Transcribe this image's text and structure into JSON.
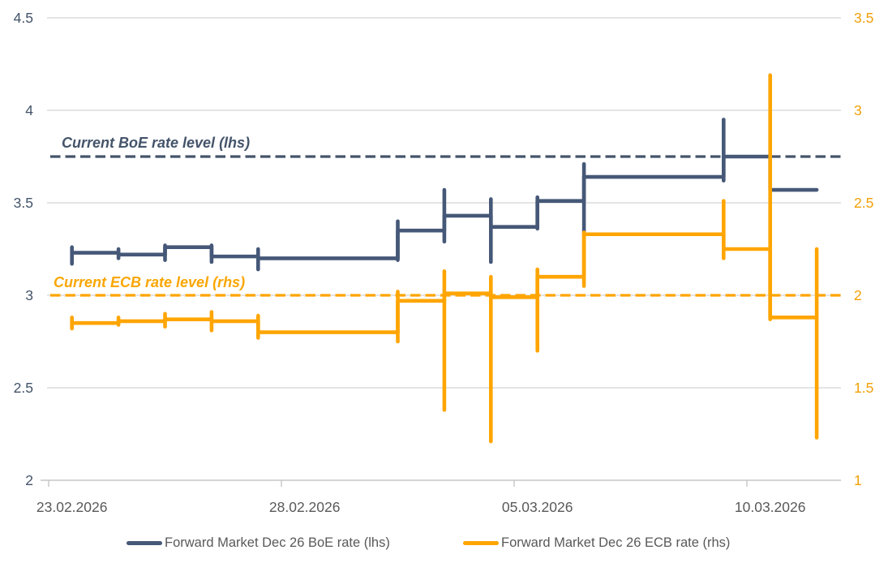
{
  "chart_data": {
    "type": "line",
    "title": "",
    "description": "Step line chart with daily high-low whiskers comparing forward market Dec 26 BoE and ECB rates on two axes",
    "background": "#FFFFFF",
    "grid": true,
    "gridline_color": "#DCDCDC",
    "axis_line_color": "#C6C6C6",
    "x_axis": {
      "tick_labels": [
        "23.02.2026",
        "28.02.2026",
        "05.03.2026",
        "10.03.2026"
      ],
      "tick_day_index": [
        0,
        5,
        10,
        15
      ],
      "total_days": 17,
      "label_color": "#595959"
    },
    "left_axis": {
      "title": "BoE rate (lhs)",
      "ticks": [
        "4.5",
        "4",
        "3.5",
        "3",
        "2.5",
        "2"
      ],
      "min": 2,
      "max": 4.5,
      "color": "#44546A"
    },
    "right_axis": {
      "title": "ECB rate (rhs)",
      "ticks": [
        "3.5",
        "3",
        "2.5",
        "2",
        "1.5",
        "1"
      ],
      "min": 1,
      "max": 3.5,
      "color": "#F2A007"
    },
    "reference_lines": [
      {
        "label": "Current BoE rate level (lhs)",
        "value": 3.75,
        "axis": "left",
        "color": "#44546A",
        "style": "dashed"
      },
      {
        "label": "Current ECB rate level (rhs)",
        "value": 2.0,
        "axis": "right",
        "color": "#FFA502",
        "style": "dashed"
      }
    ],
    "series": [
      {
        "name": "Forward Market Dec 26 BoE rate (lhs)",
        "axis": "left",
        "color": "#465878",
        "points": [
          {
            "date": "23.02.2026",
            "day": 0,
            "value": 3.23,
            "low": 3.17,
            "high": 3.26
          },
          {
            "date": "24.02.2026",
            "day": 1,
            "value": 3.22,
            "low": 3.2,
            "high": 3.25
          },
          {
            "date": "25.02.2026",
            "day": 2,
            "value": 3.26,
            "low": 3.19,
            "high": 3.27
          },
          {
            "date": "26.02.2026",
            "day": 3,
            "value": 3.21,
            "low": 3.18,
            "high": 3.27
          },
          {
            "date": "27.02.2026",
            "day": 4,
            "value": 3.2,
            "low": 3.14,
            "high": 3.25
          },
          {
            "date": "02.03.2026",
            "day": 7,
            "value": 3.35,
            "low": 3.19,
            "high": 3.4
          },
          {
            "date": "03.03.2026",
            "day": 8,
            "value": 3.43,
            "low": 3.29,
            "high": 3.57
          },
          {
            "date": "04.03.2026",
            "day": 9,
            "value": 3.37,
            "low": 3.18,
            "high": 3.52
          },
          {
            "date": "05.03.2026",
            "day": 10,
            "value": 3.51,
            "low": 3.36,
            "high": 3.53
          },
          {
            "date": "06.03.2026",
            "day": 11,
            "value": 3.64,
            "low": 3.33,
            "high": 3.71
          },
          {
            "date": "09.03.2026",
            "day": 14,
            "value": 3.75,
            "low": 3.62,
            "high": 3.95
          },
          {
            "date": "10.03.2026",
            "day": 15,
            "value": 3.57,
            "low": null,
            "high": null
          },
          {
            "date": "11.03.2026",
            "day": 16,
            "value": null,
            "low": null,
            "high": null
          }
        ]
      },
      {
        "name": "Forward Market Dec 26 ECB rate  (rhs)",
        "axis": "right",
        "color": "#FFA502",
        "points": [
          {
            "date": "23.02.2026",
            "day": 0,
            "value": 1.85,
            "low": 1.82,
            "high": 1.88
          },
          {
            "date": "24.02.2026",
            "day": 1,
            "value": 1.86,
            "low": 1.84,
            "high": 1.88
          },
          {
            "date": "25.02.2026",
            "day": 2,
            "value": 1.87,
            "low": 1.83,
            "high": 1.9
          },
          {
            "date": "26.02.2026",
            "day": 3,
            "value": 1.86,
            "low": 1.81,
            "high": 1.91
          },
          {
            "date": "27.02.2026",
            "day": 4,
            "value": 1.8,
            "low": 1.77,
            "high": 1.89
          },
          {
            "date": "02.03.2026",
            "day": 7,
            "value": 1.97,
            "low": 1.75,
            "high": 2.02
          },
          {
            "date": "03.03.2026",
            "day": 8,
            "value": 2.01,
            "low": 1.38,
            "high": 2.13
          },
          {
            "date": "04.03.2026",
            "day": 9,
            "value": 1.99,
            "low": 1.21,
            "high": 2.1
          },
          {
            "date": "05.03.2026",
            "day": 10,
            "value": 2.1,
            "low": 1.7,
            "high": 2.14
          },
          {
            "date": "06.03.2026",
            "day": 11,
            "value": 2.33,
            "low": 2.05,
            "high": 2.34
          },
          {
            "date": "09.03.2026",
            "day": 14,
            "value": 2.25,
            "low": 2.2,
            "high": 2.51
          },
          {
            "date": "10.03.2026",
            "day": 15,
            "value": 1.88,
            "low": 1.87,
            "high": 3.19
          },
          {
            "date": "11.03.2026",
            "day": 16,
            "value": null,
            "low": 1.23,
            "high": 2.25
          }
        ]
      }
    ],
    "legend_position": "bottom"
  },
  "legend": {
    "items": [
      {
        "label": "Forward Market Dec 26 BoE rate (lhs)",
        "color": "#465878"
      },
      {
        "label": "Forward Market Dec 26 ECB rate  (rhs)",
        "color": "#FFA502"
      }
    ]
  }
}
